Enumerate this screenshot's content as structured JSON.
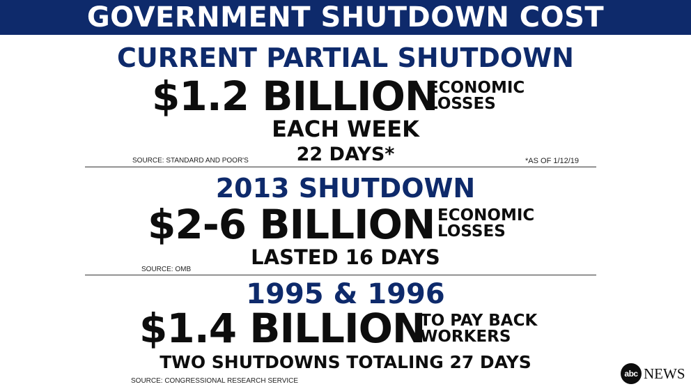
{
  "banner": {
    "title": "GOVERNMENT SHUTDOWN COST"
  },
  "sections": [
    {
      "heading": "CURRENT PARTIAL SHUTDOWN",
      "amount": "$1.2 BILLION",
      "note_line1": "ECONOMIC",
      "note_line2": "LOSSES",
      "sub1": "EACH WEEK",
      "sub2": "22 DAYS*",
      "source": "SOURCE: STANDARD AND POOR'S",
      "footnote": "*AS OF 1/12/19"
    },
    {
      "heading": "2013 SHUTDOWN",
      "amount": "$2-6 BILLION",
      "note_line1": "ECONOMIC",
      "note_line2": "LOSSES",
      "sub1": "LASTED 16 DAYS",
      "source": "SOURCE: OMB"
    },
    {
      "heading": "1995 & 1996",
      "amount": "$1.4 BILLION",
      "note_line1": "TO PAY BACK",
      "note_line2": "WORKERS",
      "sub1": "TWO SHUTDOWNS TOTALING 27 DAYS",
      "source": "SOURCE: CONGRESSIONAL RESEARCH SERVICE"
    }
  ],
  "logo": {
    "mark": "abc",
    "word": "NEWS"
  },
  "colors": {
    "banner": "#0e2a6b",
    "heading": "#0e2a6b",
    "text": "#0d0d0d"
  }
}
